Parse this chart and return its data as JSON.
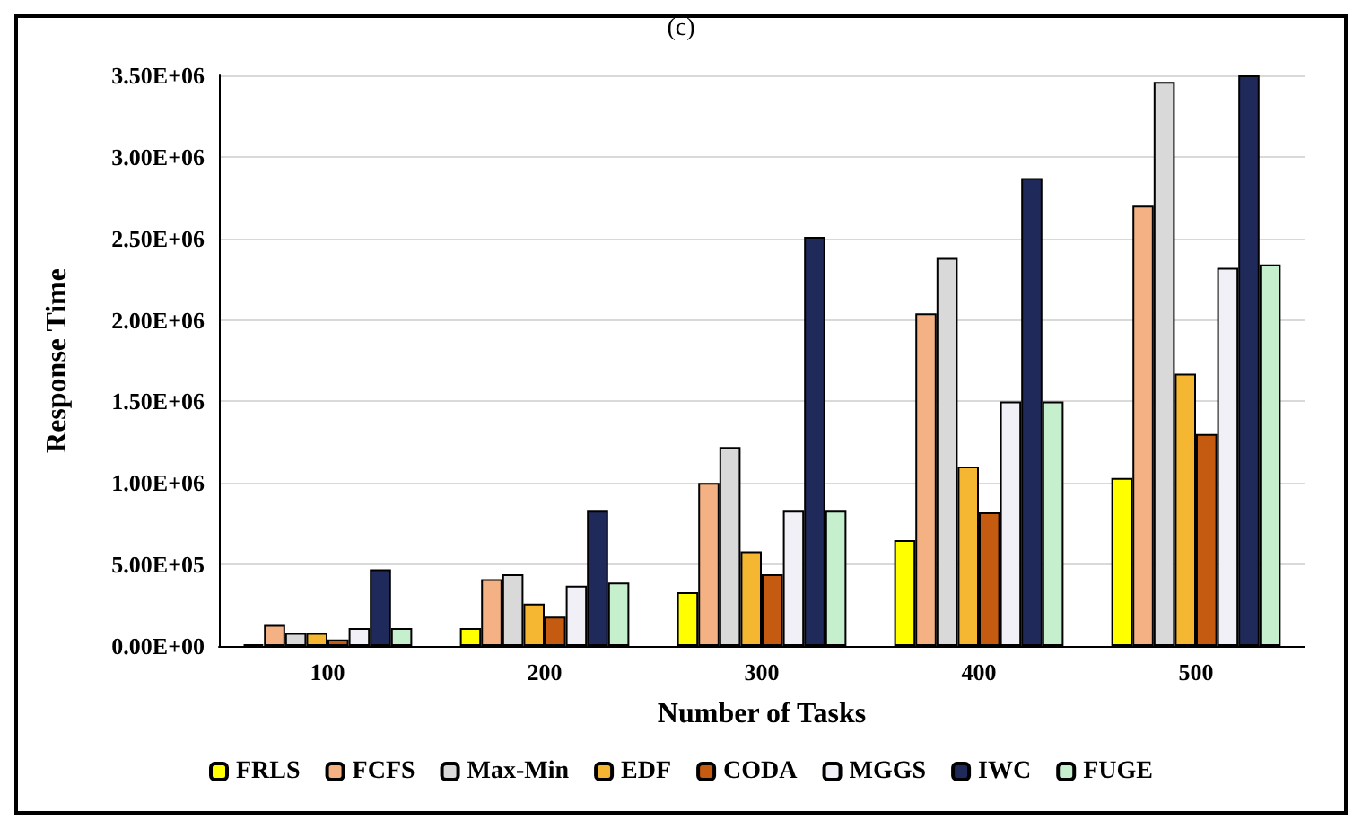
{
  "chart_data": {
    "type": "bar",
    "title": "(c)",
    "xlabel": "Number of Tasks",
    "ylabel": "Response Time",
    "categories": [
      "100",
      "200",
      "300",
      "400",
      "500"
    ],
    "series": [
      {
        "name": "FRLS",
        "color": "#ffff00",
        "values": [
          10000,
          110000,
          330000,
          650000,
          1030000
        ]
      },
      {
        "name": "FCFS",
        "color": "#f4b183",
        "values": [
          130000,
          410000,
          1000000,
          2040000,
          2700000
        ]
      },
      {
        "name": "Max-Min",
        "color": "#d9d9d9",
        "values": [
          80000,
          440000,
          1220000,
          2380000,
          3460000
        ]
      },
      {
        "name": "EDF",
        "color": "#f5b731",
        "values": [
          80000,
          260000,
          580000,
          1100000,
          1670000
        ]
      },
      {
        "name": "CODA",
        "color": "#c55a11",
        "values": [
          40000,
          180000,
          440000,
          820000,
          1300000
        ]
      },
      {
        "name": "MGGS",
        "color": "#f2f0f7",
        "values": [
          110000,
          370000,
          830000,
          1500000,
          2320000
        ]
      },
      {
        "name": "IWC",
        "color": "#1f2a5a",
        "values": [
          470000,
          830000,
          2510000,
          2870000,
          3500000
        ]
      },
      {
        "name": "FUGE",
        "color": "#c6efce",
        "values": [
          110000,
          390000,
          830000,
          1500000,
          2340000
        ]
      }
    ],
    "ylim": [
      0,
      3500000
    ],
    "yticks": [
      {
        "value": 0,
        "label": "0.00E+00"
      },
      {
        "value": 500000,
        "label": "5.00E+05"
      },
      {
        "value": 1000000,
        "label": "1.00E+06"
      },
      {
        "value": 1500000,
        "label": "1.50E+06"
      },
      {
        "value": 2000000,
        "label": "2.00E+06"
      },
      {
        "value": 2500000,
        "label": "2.50E+06"
      },
      {
        "value": 3000000,
        "label": "3.00E+06"
      },
      {
        "value": 3500000,
        "label": "3.50E+06"
      }
    ],
    "grid": "y",
    "legend": "bottom"
  }
}
